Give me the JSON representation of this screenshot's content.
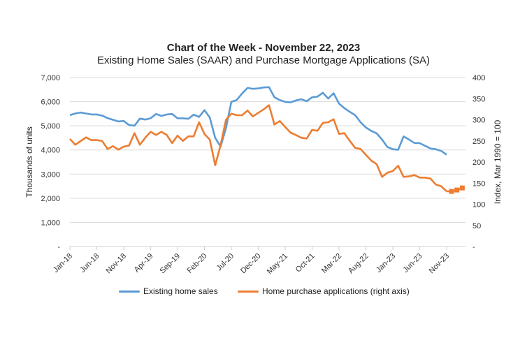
{
  "title": "Chart of the Week - November 22, 2023",
  "subtitle": "Existing Home Sales (SAAR) and Purchase Mortgage Applications (SA)",
  "chart_data": {
    "type": "line",
    "title": "Chart of the Week - November 22, 2023",
    "subtitle": "Existing Home Sales (SAAR) and Purchase Mortgage Applications (SA)",
    "x_start": "Jan-18",
    "x_unit": "months since Jan-18",
    "xtick_labels": [
      "Jan-18",
      "Jun-18",
      "Nov-18",
      "Apr-19",
      "Sep-19",
      "Feb-20",
      "Jul-20",
      "Dec-20",
      "May-21",
      "Oct-21",
      "Mar-22",
      "Aug-22",
      "Jan-23",
      "Jun-23",
      "Nov-23"
    ],
    "xtick_step_months": 5,
    "xlim": [
      0,
      73.5
    ],
    "ylabel": "Thousands of units",
    "ylim": [
      0,
      7000
    ],
    "yticks": [
      0,
      1000,
      2000,
      3000,
      4000,
      5000,
      6000,
      7000
    ],
    "ytick_labels": [
      "-",
      "1,000",
      "2,000",
      "3,000",
      "4,000",
      "5,000",
      "6,000",
      "7,000"
    ],
    "y2label": "Index, Mar 1990 = 100",
    "y2lim": [
      0,
      400
    ],
    "y2ticks": [
      0,
      50,
      100,
      150,
      200,
      250,
      300,
      350,
      400
    ],
    "y2tick_labels": [
      "-",
      "50",
      "100",
      "150",
      "200",
      "250",
      "300",
      "350",
      "400"
    ],
    "grid": true,
    "legend_position": "bottom",
    "series": [
      {
        "name": "Existing home sales",
        "axis": "left",
        "color": "#5B9BD5",
        "values": [
          5440,
          5510,
          5550,
          5510,
          5470,
          5470,
          5420,
          5320,
          5250,
          5180,
          5200,
          5030,
          5000,
          5300,
          5260,
          5310,
          5490,
          5410,
          5470,
          5490,
          5310,
          5310,
          5290,
          5460,
          5370,
          5650,
          5340,
          4500,
          4140,
          4910,
          5990,
          6070,
          6340,
          6570,
          6530,
          6550,
          6590,
          6600,
          6180,
          6070,
          5990,
          5970,
          6050,
          6100,
          6020,
          6180,
          6210,
          6370,
          6130,
          6350,
          5920,
          5730,
          5580,
          5440,
          5150,
          4930,
          4790,
          4690,
          4430,
          4120,
          4030,
          4010,
          4560,
          4430,
          4290,
          4280,
          4170,
          4060,
          4030,
          3960,
          3800
        ]
      },
      {
        "name": "Home purchase applications (right axis)",
        "axis": "right",
        "color": "#ED7D31",
        "values": [
          254.6,
          240.8,
          249.6,
          258.4,
          251.8,
          252,
          249.6,
          230.9,
          237.5,
          229.2,
          236.4,
          239.2,
          268.3,
          240.8,
          257.3,
          271.6,
          263.9,
          271.6,
          263.9,
          244.6,
          262.3,
          250.1,
          260.6,
          260.6,
          294.2,
          266.6,
          252.9,
          192.3,
          240,
          300,
          314.6,
          310.8,
          310.8,
          321.8,
          308,
          316.3,
          324.5,
          334.5,
          288.7,
          297,
          283.2,
          269.4,
          263.9,
          257.3,
          255.7,
          276,
          273.9,
          292.6,
          294.2,
          301.4,
          266.6,
          268.3,
          250.1,
          233.6,
          230.9,
          217,
          203.3,
          195,
          164.8,
          174.7,
          178.5,
          191.3,
          164.8,
          165.9,
          169.1,
          163.1,
          163.1,
          160.9,
          146.6,
          142.7,
          130.6
        ],
        "weekly_points": {
          "x": [
            70.9,
            71.9,
            72.9
          ],
          "values": [
            130.4,
            133.7,
            138.6
          ]
        }
      }
    ]
  }
}
